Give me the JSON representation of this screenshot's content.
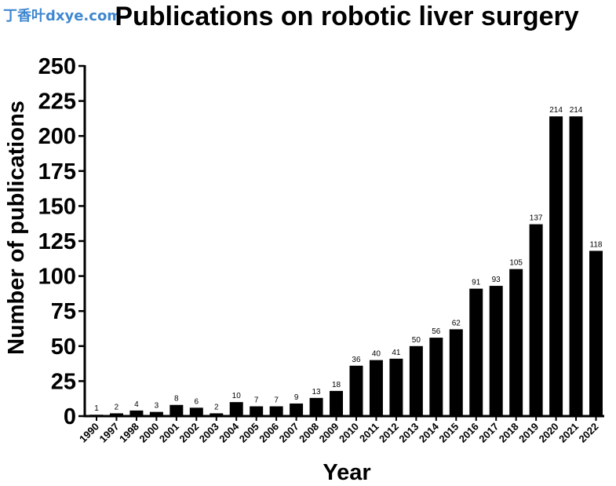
{
  "watermark": "丁香叶dxye.com",
  "chart_data": {
    "type": "bar",
    "title": "Publications on robotic liver surgery",
    "xlabel": "Year",
    "ylabel": "Number of publications",
    "ylim": [
      0,
      250
    ],
    "yticks": [
      "0",
      "25",
      "50",
      "75",
      "100",
      "125",
      "150",
      "175",
      "200",
      "225",
      "250"
    ],
    "grid": false,
    "bar_color": "#000000",
    "categories": [
      "1990",
      "1997",
      "1998",
      "2000",
      "2001",
      "2002",
      "2003",
      "2004",
      "2005",
      "2006",
      "2007",
      "2008",
      "2009",
      "2010",
      "2011",
      "2012",
      "2013",
      "2014",
      "2015",
      "2016",
      "2017",
      "2018",
      "2019",
      "2020",
      "2021",
      "2022"
    ],
    "values": [
      1,
      2,
      4,
      3,
      8,
      6,
      2,
      10,
      7,
      7,
      9,
      13,
      18,
      36,
      40,
      41,
      50,
      56,
      62,
      91,
      93,
      105,
      137,
      214,
      214,
      118
    ]
  }
}
